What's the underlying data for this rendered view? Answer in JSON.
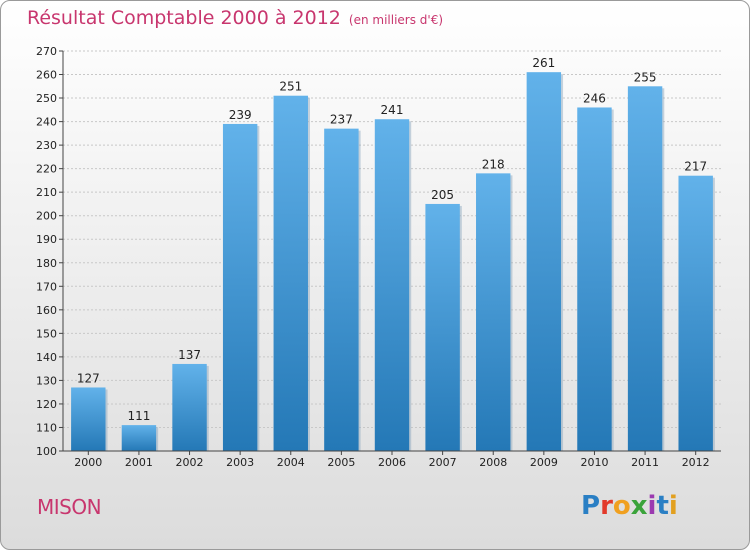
{
  "header": {
    "title": "Résultat Comptable 2000 à 2012",
    "subtitle": "(en milliers d'€)"
  },
  "footer": {
    "place": "MISON",
    "brand": "Proxiti"
  },
  "colors": {
    "accent": "#c8366e",
    "bar_top": "#62b2ea",
    "bar_bottom": "#2478b6"
  },
  "chart_data": {
    "type": "bar",
    "title": "Résultat Comptable 2000 à 2012",
    "subtitle": "(en milliers d'€)",
    "categories": [
      "2000",
      "2001",
      "2002",
      "2003",
      "2004",
      "2005",
      "2006",
      "2007",
      "2008",
      "2009",
      "2010",
      "2011",
      "2012"
    ],
    "values": [
      127,
      111,
      137,
      239,
      251,
      237,
      241,
      205,
      218,
      261,
      246,
      255,
      217
    ],
    "ylim": [
      100,
      270
    ],
    "ytick_step": 10,
    "grid": true,
    "xlabel": "",
    "ylabel": ""
  }
}
